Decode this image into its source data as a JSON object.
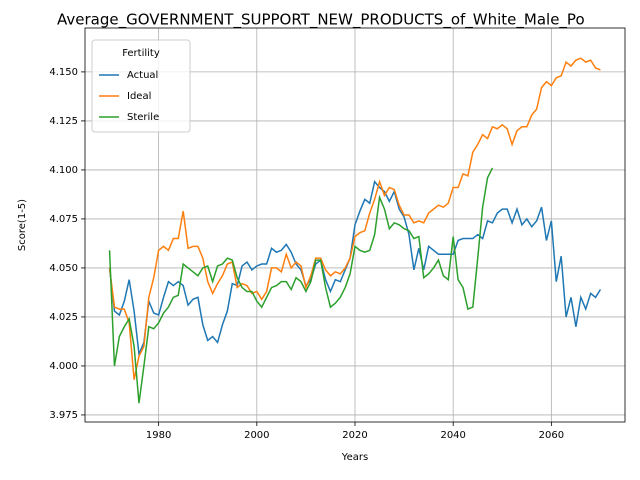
{
  "chart_data": {
    "type": "line",
    "title": "Average_GOVERNMENT_SUPPORT_NEW_PRODUCTS_of_White_Male_Po",
    "x_label": "Years",
    "y_label": "Score(1-5)",
    "legend_title": "Fertility",
    "legend_loc": "upper left",
    "grid": true,
    "x": [
      1970,
      1971,
      1972,
      1973,
      1974,
      1975,
      1976,
      1977,
      1978,
      1979,
      1980,
      1981,
      1982,
      1983,
      1984,
      1985,
      1986,
      1987,
      1988,
      1989,
      1990,
      1991,
      1992,
      1993,
      1994,
      1995,
      1996,
      1997,
      1998,
      1999,
      2000,
      2001,
      2002,
      2003,
      2004,
      2005,
      2006,
      2007,
      2008,
      2009,
      2010,
      2011,
      2012,
      2013,
      2014,
      2015,
      2016,
      2017,
      2018,
      2019,
      2020,
      2021,
      2022,
      2023,
      2024,
      2025,
      2026,
      2027,
      2028,
      2029,
      2030,
      2031,
      2032,
      2033,
      2034,
      2035,
      2036,
      2037,
      2038,
      2039,
      2040,
      2041,
      2042,
      2043,
      2044,
      2045,
      2046,
      2047,
      2048,
      2049,
      2050,
      2051,
      2052,
      2053,
      2054,
      2055,
      2056,
      2057,
      2058,
      2059,
      2060,
      2061,
      2062,
      2063,
      2064,
      2065,
      2066,
      2067,
      2068,
      2069,
      2070
    ],
    "series": [
      {
        "name": "Actual",
        "color": "#1f77b4",
        "values": [
          4.05,
          4.028,
          4.026,
          4.033,
          4.044,
          4.028,
          4.006,
          4.012,
          4.033,
          4.027,
          4.026,
          4.035,
          4.043,
          4.041,
          4.043,
          4.041,
          4.031,
          4.034,
          4.035,
          4.021,
          4.013,
          4.015,
          4.012,
          4.021,
          4.028,
          4.042,
          4.041,
          4.051,
          4.053,
          4.049,
          4.051,
          4.052,
          4.052,
          4.06,
          4.058,
          4.059,
          4.062,
          4.058,
          4.052,
          4.049,
          4.041,
          4.044,
          4.052,
          4.054,
          4.044,
          4.038,
          4.044,
          4.043,
          4.049,
          4.055,
          4.072,
          4.079,
          4.085,
          4.083,
          4.094,
          4.091,
          4.089,
          4.084,
          4.089,
          4.08,
          4.076,
          4.067,
          4.049,
          4.06,
          4.049,
          4.061,
          4.059,
          4.057,
          4.057,
          4.057,
          4.057,
          4.064,
          4.065,
          4.065,
          4.065,
          4.067,
          4.065,
          4.074,
          4.073,
          4.078,
          4.08,
          4.08,
          4.073,
          4.08,
          4.072,
          4.075,
          4.071,
          4.074,
          4.081,
          4.064,
          4.074,
          4.043,
          4.056,
          4.025,
          4.035,
          4.02,
          4.035,
          4.029,
          4.037,
          4.035,
          4.039
        ]
      },
      {
        "name": "Ideal",
        "color": "#ff7f0e",
        "values": [
          4.05,
          4.03,
          4.029,
          4.029,
          4.022,
          3.993,
          4.005,
          4.01,
          4.035,
          4.045,
          4.059,
          4.061,
          4.059,
          4.065,
          4.065,
          4.079,
          4.06,
          4.061,
          4.061,
          4.055,
          4.043,
          4.037,
          4.042,
          4.046,
          4.052,
          4.053,
          4.04,
          4.042,
          4.041,
          4.037,
          4.038,
          4.034,
          4.038,
          4.05,
          4.05,
          4.048,
          4.057,
          4.05,
          4.053,
          4.051,
          4.04,
          4.046,
          4.055,
          4.055,
          4.049,
          4.046,
          4.048,
          4.047,
          4.05,
          4.055,
          4.066,
          4.068,
          4.069,
          4.078,
          4.085,
          4.094,
          4.087,
          4.091,
          4.09,
          4.082,
          4.077,
          4.077,
          4.073,
          4.074,
          4.073,
          4.078,
          4.08,
          4.082,
          4.081,
          4.083,
          4.091,
          4.091,
          4.098,
          4.097,
          4.109,
          4.113,
          4.118,
          4.116,
          4.122,
          4.121,
          4.123,
          4.121,
          4.113,
          4.12,
          4.122,
          4.122,
          4.128,
          4.131,
          4.142,
          4.145,
          4.143,
          4.147,
          4.148,
          4.155,
          4.153,
          4.156,
          4.157,
          4.155,
          4.156,
          4.152,
          4.151
        ]
      },
      {
        "name": "Sterile",
        "color": "#2ca02c",
        "values": [
          4.059,
          4.0,
          4.015,
          4.02,
          4.024,
          4.01,
          3.981,
          4.0,
          4.02,
          4.019,
          4.022,
          4.027,
          4.03,
          4.035,
          4.036,
          4.052,
          4.05,
          4.048,
          4.046,
          4.05,
          4.051,
          4.043,
          4.051,
          4.052,
          4.055,
          4.054,
          4.045,
          4.04,
          4.038,
          4.038,
          4.033,
          4.03,
          4.035,
          4.04,
          4.041,
          4.043,
          4.043,
          4.039,
          4.045,
          4.043,
          4.038,
          4.043,
          4.054,
          4.054,
          4.04,
          4.03,
          4.032,
          4.035,
          4.04,
          4.047,
          4.061,
          4.059,
          4.058,
          4.059,
          4.067,
          4.086,
          4.08,
          4.07,
          4.073,
          4.072,
          4.07,
          4.069,
          4.065,
          4.066,
          4.045,
          4.047,
          4.05,
          4.054,
          4.046,
          4.044,
          4.066,
          4.044,
          4.04,
          4.029,
          4.03,
          4.055,
          4.081,
          4.096,
          4.101,
          null,
          null,
          null,
          null,
          null,
          null,
          null,
          null,
          null,
          null,
          null,
          null,
          null,
          null,
          null,
          null,
          null,
          null,
          null,
          null,
          null,
          null
        ]
      }
    ],
    "xlim": [
      1965,
      2075
    ],
    "xticks": [
      1980,
      2000,
      2020,
      2040,
      2060
    ],
    "ylim": [
      3.9714,
      4.1724
    ],
    "yticks": [
      3.975,
      {
        "value": 4.0,
        "label": "4.000"
      },
      4.025,
      {
        "value": 4.05,
        "label": "4.050"
      },
      4.075,
      {
        "value": 4.1,
        "label": "4.100"
      },
      4.125,
      {
        "value": 4.15,
        "label": "4.150"
      }
    ]
  }
}
